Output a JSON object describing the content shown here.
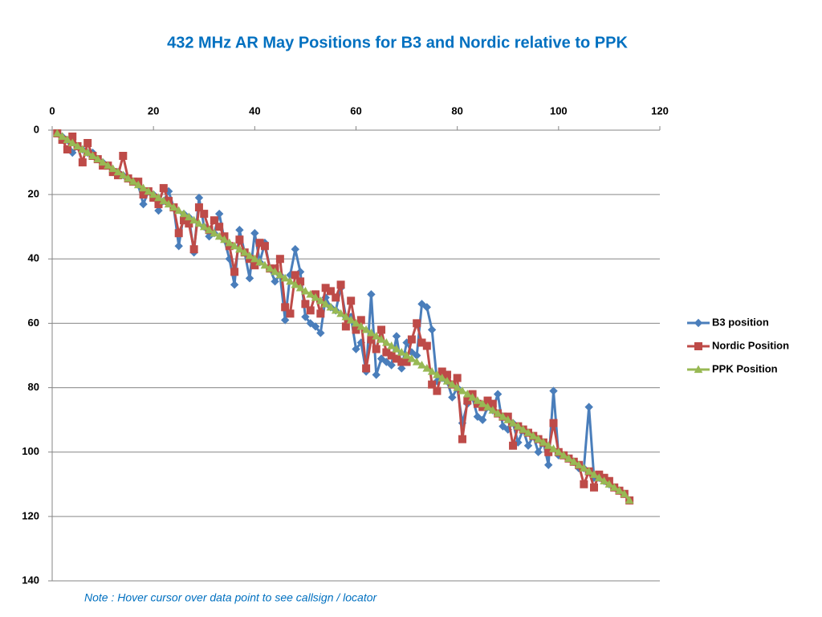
{
  "chart_data": {
    "type": "line",
    "title": "432 MHz AR May Positions for B3 and Nordic relative to PPK",
    "note": "Note : Hover cursor over data point to see callsign / locator",
    "x": [
      1,
      2,
      3,
      4,
      5,
      6,
      7,
      8,
      9,
      10,
      11,
      12,
      13,
      14,
      15,
      16,
      17,
      18,
      19,
      20,
      21,
      22,
      23,
      24,
      25,
      26,
      27,
      28,
      29,
      30,
      31,
      32,
      33,
      34,
      35,
      36,
      37,
      38,
      39,
      40,
      41,
      42,
      43,
      44,
      45,
      46,
      47,
      48,
      49,
      50,
      51,
      52,
      53,
      54,
      55,
      56,
      57,
      58,
      59,
      60,
      61,
      62,
      63,
      64,
      65,
      66,
      67,
      68,
      69,
      70,
      71,
      72,
      73,
      74,
      75,
      76,
      77,
      78,
      79,
      80,
      81,
      82,
      83,
      84,
      85,
      86,
      87,
      88,
      89,
      90,
      91,
      92,
      93,
      94,
      95,
      96,
      97,
      98,
      99,
      100,
      101,
      102,
      103,
      104,
      105,
      106,
      107,
      108,
      109,
      110,
      111,
      112,
      113,
      114
    ],
    "series": [
      {
        "name": "B3 position",
        "color": "#4a7ebb",
        "marker": "diamond",
        "values": [
          1,
          2,
          3,
          7,
          5,
          6,
          7,
          7,
          9,
          10,
          11,
          13,
          13,
          14,
          15,
          16,
          17,
          23,
          19,
          20,
          25,
          22,
          19,
          24,
          36,
          26,
          27,
          38,
          21,
          30,
          33,
          32,
          26,
          34,
          40,
          48,
          31,
          38,
          46,
          32,
          41,
          35,
          43,
          47,
          45,
          59,
          45,
          37,
          44,
          58,
          60,
          61,
          63,
          52,
          55,
          56,
          49,
          58,
          58,
          68,
          66,
          75,
          51,
          76,
          71,
          72,
          73,
          64,
          74,
          66,
          69,
          70,
          54,
          55,
          62,
          78,
          77,
          78,
          83,
          80,
          91,
          85,
          83,
          89,
          90,
          86,
          87,
          82,
          92,
          93,
          91,
          97,
          93,
          98,
          95,
          100,
          97,
          104,
          81,
          101,
          101,
          102,
          103,
          105,
          105,
          86,
          108,
          108,
          109,
          110,
          111,
          112,
          113,
          115
        ]
      },
      {
        "name": "Nordic Position",
        "color": "#be4b48",
        "marker": "square",
        "values": [
          1,
          3,
          6,
          2,
          5,
          10,
          4,
          8,
          9,
          11,
          11,
          13,
          14,
          8,
          15,
          16,
          16,
          20,
          19,
          21,
          23,
          18,
          22,
          24,
          32,
          28,
          29,
          37,
          24,
          26,
          31,
          28,
          30,
          33,
          36,
          44,
          34,
          38,
          40,
          42,
          35,
          36,
          43,
          43,
          40,
          55,
          57,
          45,
          47,
          54,
          56,
          51,
          57,
          49,
          50,
          52,
          48,
          61,
          53,
          62,
          59,
          74,
          65,
          68,
          62,
          69,
          70,
          71,
          72,
          72,
          65,
          60,
          66,
          67,
          79,
          81,
          75,
          76,
          79,
          77,
          96,
          84,
          82,
          85,
          86,
          84,
          85,
          88,
          89,
          89,
          98,
          92,
          93,
          94,
          95,
          96,
          97,
          100,
          91,
          100,
          101,
          102,
          103,
          104,
          110,
          106,
          111,
          107,
          108,
          109,
          111,
          112,
          113,
          115
        ]
      },
      {
        "name": "PPK Position",
        "color": "#98b954",
        "marker": "triangle",
        "values": [
          1,
          2,
          3,
          4,
          5,
          6,
          7,
          8,
          9,
          10,
          11,
          12,
          13,
          14,
          15,
          16,
          17,
          18,
          19,
          20,
          21,
          22,
          23,
          24,
          25,
          26,
          27,
          28,
          29,
          30,
          31,
          32,
          33,
          34,
          35,
          36,
          37,
          38,
          39,
          40,
          41,
          42,
          43,
          44,
          45,
          46,
          47,
          48,
          49,
          50,
          51,
          52,
          53,
          54,
          55,
          56,
          57,
          58,
          59,
          60,
          61,
          62,
          63,
          64,
          65,
          66,
          67,
          68,
          69,
          70,
          71,
          72,
          73,
          74,
          75,
          76,
          77,
          78,
          79,
          80,
          81,
          82,
          83,
          84,
          85,
          86,
          87,
          88,
          89,
          90,
          91,
          92,
          93,
          94,
          95,
          96,
          97,
          98,
          99,
          100,
          101,
          102,
          103,
          104,
          105,
          106,
          107,
          108,
          109,
          110,
          111,
          112,
          113,
          115
        ]
      }
    ],
    "xlim": [
      0,
      120
    ],
    "xticks": [
      0,
      20,
      40,
      60,
      80,
      100,
      120
    ],
    "ylim": [
      0,
      140
    ],
    "yticks": [
      0,
      20,
      40,
      60,
      80,
      100,
      120,
      140
    ],
    "y_inverted": true,
    "x_axis_top": true,
    "grid": true,
    "legend": "right"
  }
}
